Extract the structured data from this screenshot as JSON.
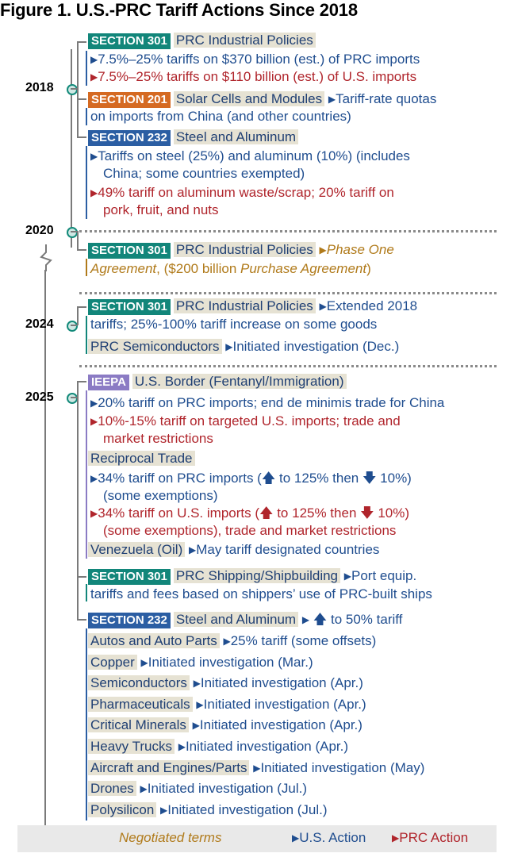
{
  "title": "Figure 1. U.S.-PRC Tariff Actions Since 2018",
  "years": [
    "2018",
    "2020",
    "2024",
    "2025"
  ],
  "s2018": {
    "tag1": "SECTION 301",
    "topic1": "PRC Industrial Policies",
    "b1": "7.5%–25% tariffs on $370 billion (est.) of PRC imports",
    "r1": "7.5%–25% tariffs on $110 billion (est.) of U.S. imports",
    "tag2": "SECTION 201",
    "topic2": "Solar Cells and Modules",
    "b2a": "Tariff-rate quotas",
    "b2b": "on imports from China (and other countries)",
    "tag3": "SECTION 232",
    "topic3": "Steel and Aluminum",
    "b3a": "Tariffs on steel (25%) and aluminum (10%) (includes",
    "b3b": "China; some countries exempted)",
    "r3a": "49% tariff on aluminum waste/scrap; 20% tariff on",
    "r3b": "pork, fruit, and nuts"
  },
  "s2020": {
    "tag": "SECTION 301",
    "topic": "PRC Industrial Policies",
    "n1": "Phase One",
    "n2a": "Agreement",
    "n2b": ", ($200 billion ",
    "n2c": "Purchase Agreement",
    "n2d": ")"
  },
  "s2024": {
    "tag": "SECTION 301",
    "topic": "PRC Industrial Policies",
    "b1a": "Extended 2018",
    "b1b": "tariffs; 25%-100% tariff increase on some goods",
    "topic2": "PRC Semiconductors",
    "b2": "Initiated investigation (Dec.)"
  },
  "s2025": {
    "ieepa_tag": "IEEPA",
    "ieepa_topic": "U.S. Border (Fentanyl/Immigration)",
    "ib1": "20% tariff on PRC imports; end de minimis trade for China",
    "ir1a": "10%-15% tariff on targeted U.S. imports; trade and",
    "ir1b": "market restrictions",
    "recip": "Reciprocal Trade",
    "rb1a": "34% tariff on PRC imports (",
    "rb1b": " to 125% then ",
    "rb1c": " 10%)",
    "rb1d": "(some exemptions)",
    "rr1a": "34% tariff on U.S. imports (",
    "rr1b": " to 125% then ",
    "rr1c": " 10%)",
    "rr1d": "(some exemptions), trade and market restrictions",
    "ven": "Venezuela (Oil)",
    "ven_b": "May tariff designated countries",
    "t301": "SECTION 301",
    "t301_topic": "PRC Shipping/Shipbuilding",
    "t301_ba": "Port equip.",
    "t301_bb": "tariffs and fees based on shippers’ use of PRC-built ships",
    "t232": "SECTION 232",
    "t232_topic": "Steel and Aluminum",
    "t232_b": " to 50% tariff",
    "items": [
      {
        "topic": "Autos and Auto Parts",
        "action": "25% tariff (some offsets)"
      },
      {
        "topic": "Copper",
        "action": "Initiated investigation (Mar.)"
      },
      {
        "topic": "Semiconductors",
        "action": "Initiated investigation (Apr.)"
      },
      {
        "topic": "Pharmaceuticals",
        "action": "Initiated investigation (Apr.)"
      },
      {
        "topic": "Critical Minerals",
        "action": "Initiated investigation (Apr.)"
      },
      {
        "topic": "Heavy Trucks",
        "action": "Initiated investigation (Apr.)"
      },
      {
        "topic": "Aircraft and Engines/Parts",
        "action": "Initiated investigation (May)"
      },
      {
        "topic": "Drones",
        "action": "Initiated investigation (Jul.)"
      },
      {
        "topic": "Polysilicon",
        "action": "Initiated investigation (Jul.)"
      }
    ]
  },
  "legend": {
    "negotiated": "Negotiated terms",
    "us": "U.S. Action",
    "prc": "PRC Action"
  },
  "colors": {
    "teal": "#12867a",
    "orange": "#d56a22",
    "blue": "#2b5ea3",
    "purple": "#8b7bc4",
    "red": "#b0252c",
    "gold": "#b07a1a"
  }
}
